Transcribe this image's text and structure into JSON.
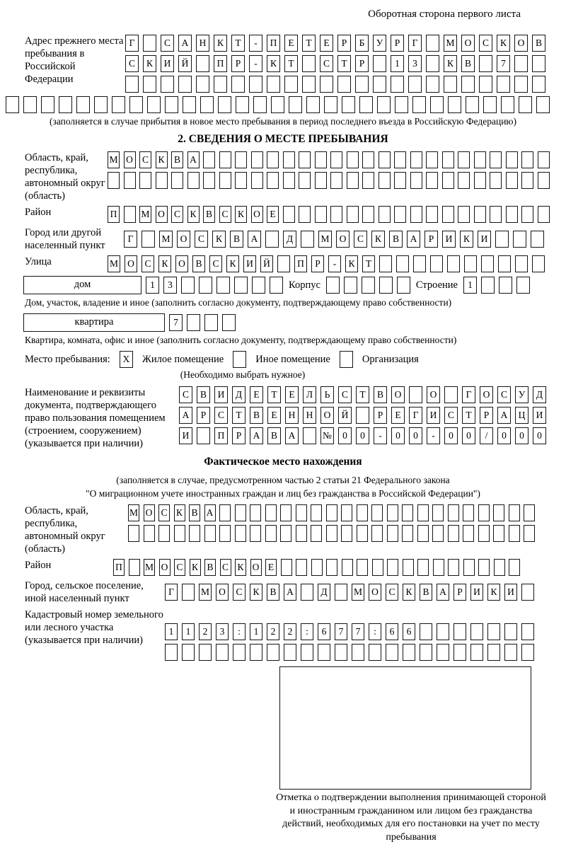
{
  "header_note": "Оборотная сторона первого листа",
  "prev_address": {
    "label": "Адрес прежнего места пребывания в Российской Федерации",
    "line1": {
      "t": "Г САНКТ-ПЕТЕРБУРГ МОСКОВ",
      "n": 24
    },
    "line2": {
      "t": "СКИЙ ПР-КТ СТР 13 КВ 7",
      "n": 24
    },
    "line3": {
      "t": "",
      "n": 24
    },
    "line4": {
      "t": "",
      "n": 31
    },
    "note": "(заполняется в случае прибытия в новое место пребывания в период последнего въезда в Российскую Федерацию)"
  },
  "section2": {
    "title": "2. СВЕДЕНИЯ О МЕСТЕ ПРЕБЫВАНИЯ",
    "oblast": {
      "label": "Область, край, республика, автономный округ (область)",
      "line1": {
        "t": "МОСКВА",
        "n": 28
      },
      "line2": {
        "t": "",
        "n": 28
      }
    },
    "rayon": {
      "label": "Район",
      "line1": {
        "t": "П МОСКВСКОЕ",
        "n": 28
      }
    },
    "gorod": {
      "label": "Город или другой населенный пункт",
      "line1": {
        "t": "Г МОСКВА Д МОСКВАРИКИ",
        "n": 24
      }
    },
    "ulitsa": {
      "label": "Улица",
      "line1": {
        "t": "МОСКОВСКИЙ ПР-КТ",
        "n": 26
      }
    },
    "dom_row": {
      "dom_label": "дом",
      "dom": {
        "t": "13",
        "n": 8
      },
      "korpus_label": "Корпус",
      "korpus": {
        "t": "",
        "n": 5
      },
      "stroenie_label": "Строение",
      "stroenie": {
        "t": "1",
        "n": 4
      }
    },
    "dom_note": "Дом, участок, владение и иное (заполнить согласно документу, подтверждающему право собственности)",
    "kvartira_row": {
      "kvartira_label": "квартира",
      "kvartira": {
        "t": "7",
        "n": 4
      }
    },
    "kvartira_note": "Квартира, комната, офис и иное (заполнить согласно документу, подтверждающему право собственности)",
    "place_type": {
      "label": "Место пребывания:",
      "zhiloe": {
        "t": "X",
        "n": 1
      },
      "zhiloe_label": "Жилое помещение",
      "inoe": {
        "t": "",
        "n": 1
      },
      "inoe_label": "Иное помещение",
      "org": {
        "t": "",
        "n": 1
      },
      "org_label": "Организация",
      "note": "(Необходимо выбрать нужное)"
    },
    "doc": {
      "label": "Наименование и реквизиты документа, подтверждающего право пользования помещением (строением, сооружением) (указывается при наличии)",
      "line1": {
        "t": "СВИДЕТЕЛЬСТВО О ГОСУД",
        "n": 21
      },
      "line2": {
        "t": "АРСТВЕННОЙ РЕГИСТРАЦИ",
        "n": 21
      },
      "line3": {
        "t": "И ПРАВА №00-00-00/000",
        "n": 21
      }
    }
  },
  "fact": {
    "title": "Фактическое место нахождения",
    "note1": "(заполняется в случае, предусмотренном частью 2 статьи 21 Федерального закона",
    "note2": "\"О миграционном учете иностранных граждан и лиц без гражданства в Российской Федерации\")",
    "oblast": {
      "label": "Область, край, республика, автономный округ (область)",
      "line1": {
        "t": "МОСКВА",
        "n": 27
      },
      "line2": {
        "t": "",
        "n": 27
      }
    },
    "rayon": {
      "label": "Район",
      "line1": {
        "t": "П МОСКВСКОЕ",
        "n": 27
      }
    },
    "gorod": {
      "label": "Город, сельское поселение, иной населенный пункт",
      "line1": {
        "t": "Г МОСКВА Д МОСКВАРИКИ",
        "n": 22
      }
    },
    "kadastr": {
      "label": "Кадастровый номер земельного или лесного участка (указывается при наличии)",
      "line1": {
        "t": "1123:122:677:66",
        "n": 22
      },
      "line2": {
        "t": "",
        "n": 22
      }
    },
    "stamp_note": "Отметка о подтверждении выполнения принимающей стороной и иностранным гражданином или лицом без гражданства действий, необходимых для его постановки на учет по месту пребывания"
  }
}
